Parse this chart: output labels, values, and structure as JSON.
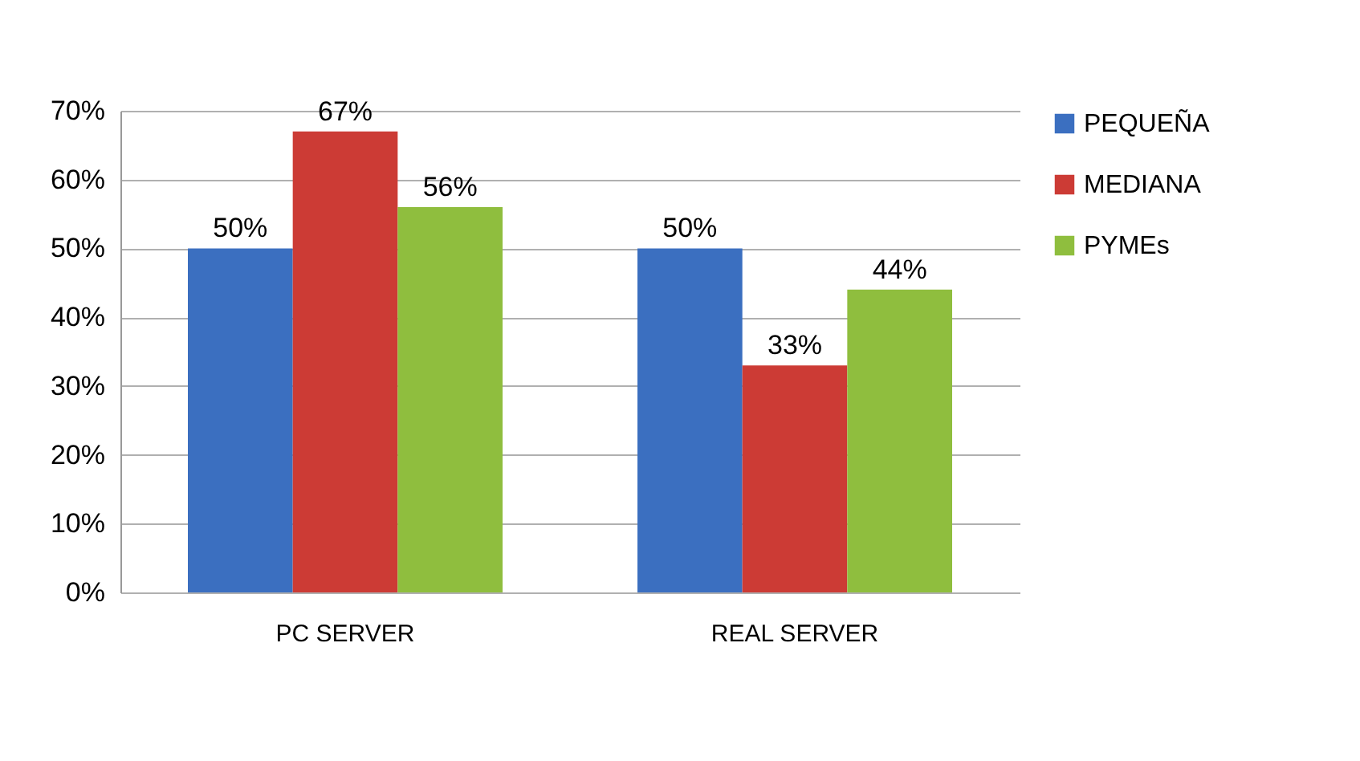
{
  "chart_data": {
    "type": "bar",
    "categories": [
      "PC SERVER",
      "REAL SERVER"
    ],
    "series": [
      {
        "name": "PEQUEÑA",
        "color": "#3b6fc0",
        "values": [
          50,
          50
        ],
        "value_labels": [
          "50%",
          "50%"
        ]
      },
      {
        "name": "MEDIANA",
        "color": "#cc3b35",
        "values": [
          67,
          33
        ],
        "value_labels": [
          "67%",
          "33%"
        ]
      },
      {
        "name": "PYMEs",
        "color": "#8fbe3e",
        "values": [
          56,
          44
        ],
        "value_labels": [
          "56%",
          "44%"
        ]
      }
    ],
    "ylim": [
      0,
      70
    ],
    "yticks": [
      {
        "value": 0,
        "label": "0%"
      },
      {
        "value": 10,
        "label": "10%"
      },
      {
        "value": 20,
        "label": "20%"
      },
      {
        "value": 30,
        "label": "30%"
      },
      {
        "value": 40,
        "label": "40%"
      },
      {
        "value": 50,
        "label": "50%"
      },
      {
        "value": 60,
        "label": "60%"
      },
      {
        "value": 70,
        "label": "70%"
      }
    ],
    "grid": "y",
    "legend": "right"
  }
}
